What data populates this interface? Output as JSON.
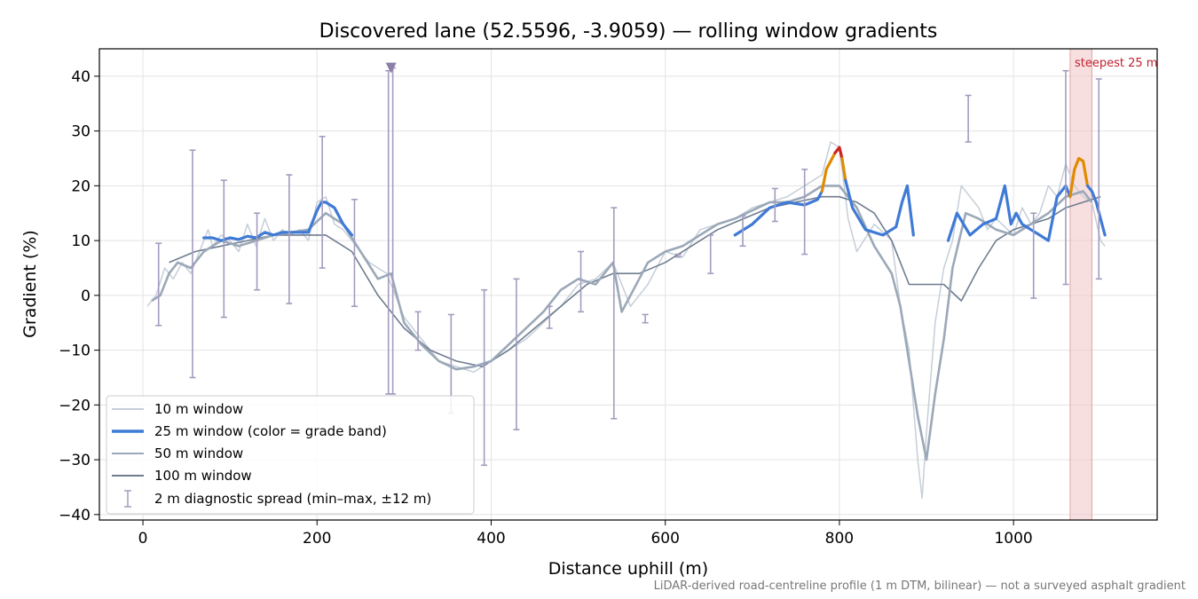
{
  "chart_data": {
    "type": "line",
    "title": "Discovered lane (52.5596, -3.9059) — rolling window gradients",
    "xlabel": "Distance uphill (m)",
    "ylabel": "Gradient (%)",
    "xlim": [
      -50,
      1165
    ],
    "ylim": [
      -41,
      45
    ],
    "xticks": [
      0,
      200,
      400,
      600,
      800,
      1000
    ],
    "yticks": [
      -40,
      -30,
      -20,
      -10,
      0,
      10,
      20,
      30,
      40
    ],
    "x_tick_labels": [
      "0",
      "200",
      "400",
      "600",
      "800",
      "1000"
    ],
    "y_tick_labels": [
      "−40",
      "−30",
      "−20",
      "−10",
      "0",
      "10",
      "20",
      "30",
      "40"
    ],
    "grid": true,
    "legend_position": "lower-left",
    "footnote": "LiDAR-derived road-centreline profile (1 m DTM, bilinear) — not a surveyed asphalt gradient",
    "steepest_span": {
      "label": "steepest 25 m",
      "x_start": 1065,
      "x_end": 1090,
      "color": "#f2c4c4"
    },
    "marker": {
      "x": 285,
      "y": 41.5,
      "shape": "triangle-down",
      "color": "#8a7fa8"
    },
    "series": [
      {
        "name": "10 m window",
        "color": "#c5ced8",
        "x": [
          5,
          15,
          25,
          35,
          45,
          55,
          65,
          75,
          80,
          90,
          100,
          110,
          120,
          130,
          140,
          150,
          160,
          170,
          180,
          190,
          200,
          210,
          220,
          230,
          240,
          260,
          280,
          300,
          320,
          340,
          360,
          380,
          400,
          420,
          440,
          460,
          480,
          500,
          520,
          540,
          560,
          580,
          600,
          620,
          640,
          660,
          680,
          700,
          720,
          740,
          760,
          780,
          790,
          800,
          810,
          820,
          840,
          860,
          870,
          880,
          890,
          895,
          900,
          905,
          910,
          920,
          930,
          940,
          950,
          960,
          970,
          980,
          1000,
          1010,
          1020,
          1030,
          1040,
          1050,
          1060,
          1070,
          1080,
          1090,
          1100,
          1105
        ],
        "y": [
          -2,
          0,
          5,
          3,
          6,
          4,
          8,
          12,
          9,
          11,
          10,
          8,
          13,
          9,
          14,
          10,
          12,
          11,
          12,
          10,
          17,
          18,
          13,
          12,
          10,
          6,
          4,
          -4,
          -8,
          -12,
          -13,
          -14,
          -12,
          -10,
          -8,
          -5,
          -2,
          2,
          3,
          6,
          -2,
          2,
          8,
          7,
          12,
          13,
          14,
          16,
          17,
          18,
          20,
          22,
          28,
          27,
          14,
          8,
          13,
          10,
          -2,
          -10,
          -30,
          -37,
          -25,
          -15,
          -5,
          5,
          10,
          20,
          18,
          16,
          12,
          14,
          11,
          16,
          13,
          15,
          20,
          18,
          24,
          20,
          18,
          17,
          10,
          9
        ]
      },
      {
        "name": "25 m window (color = grade band)",
        "color": "#3f7ad6",
        "segments": [
          {
            "band": "blue",
            "color": "#3f7ad6",
            "x": [
              70,
              80,
              90,
              100,
              110,
              120,
              130,
              140,
              150,
              160,
              170,
              180,
              190,
              200,
              205,
              210,
              220,
              230,
              240
            ],
            "y": [
              10.5,
              10.5,
              10,
              10.5,
              10.2,
              10.8,
              10.5,
              11.5,
              11,
              11.5,
              11.5,
              11.5,
              11.5,
              15.5,
              17,
              17,
              16,
              13,
              11
            ]
          },
          {
            "band": "blue",
            "color": "#3f7ad6",
            "x": [
              680,
              700,
              720,
              740,
              760,
              775,
              780
            ],
            "y": [
              11,
              13,
              16,
              17,
              16.5,
              17.5,
              19
            ]
          },
          {
            "band": "orange",
            "color": "#e08a00",
            "x": [
              780,
              785,
              790,
              795
            ],
            "y": [
              19,
              23,
              24.5,
              26
            ]
          },
          {
            "band": "red",
            "color": "#d02020",
            "x": [
              795,
              800,
              803
            ],
            "y": [
              26,
              27,
              25
            ]
          },
          {
            "band": "orange",
            "color": "#e08a00",
            "x": [
              803,
              807
            ],
            "y": [
              25,
              21
            ]
          },
          {
            "band": "blue",
            "color": "#3f7ad6",
            "x": [
              807,
              815,
              830,
              850,
              865,
              872,
              878,
              885
            ],
            "y": [
              21,
              16,
              12,
              11,
              12.5,
              17,
              20,
              11
            ]
          },
          {
            "band": "blue",
            "color": "#3f7ad6",
            "x": [
              925,
              935,
              950,
              965,
              980,
              990,
              997,
              1003,
              1010,
              1020,
              1030,
              1040,
              1050,
              1060,
              1065
            ],
            "y": [
              10,
              15,
              11,
              13,
              14,
              20,
              13,
              15,
              13,
              12,
              11,
              10,
              18,
              20,
              18
            ]
          },
          {
            "band": "orange",
            "color": "#e08a00",
            "x": [
              1065,
              1070,
              1075,
              1080,
              1085
            ],
            "y": [
              18,
              23,
              25,
              24.5,
              20
            ]
          },
          {
            "band": "blue",
            "color": "#3f7ad6",
            "x": [
              1085,
              1090,
              1095,
              1100,
              1105
            ],
            "y": [
              20,
              19,
              17,
              14,
              11
            ]
          }
        ]
      },
      {
        "name": "50 m window",
        "color": "#9ba8b8",
        "x": [
          10,
          20,
          30,
          40,
          55,
          70,
          90,
          110,
          130,
          150,
          170,
          190,
          210,
          230,
          250,
          270,
          285,
          300,
          320,
          340,
          360,
          380,
          400,
          420,
          440,
          460,
          480,
          500,
          520,
          540,
          550,
          560,
          580,
          600,
          620,
          640,
          660,
          680,
          700,
          720,
          740,
          760,
          780,
          800,
          820,
          840,
          860,
          870,
          880,
          890,
          900,
          910,
          920,
          930,
          945,
          960,
          980,
          1000,
          1020,
          1040,
          1060,
          1080,
          1090
        ],
        "y": [
          -1,
          0,
          4,
          6,
          5,
          8,
          10,
          9,
          10,
          11,
          11.5,
          12,
          15,
          13,
          8,
          3,
          4,
          -5,
          -9,
          -12,
          -13.5,
          -13,
          -12,
          -9,
          -6,
          -3,
          1,
          3,
          2,
          6,
          -3,
          0,
          6,
          8,
          9,
          11,
          13,
          14,
          15.5,
          17,
          17,
          18,
          20,
          20,
          16,
          9,
          4,
          -2,
          -12,
          -22,
          -30,
          -18,
          -8,
          5,
          15,
          14,
          12,
          11,
          13,
          15,
          18,
          19,
          17
        ]
      },
      {
        "name": "100 m window",
        "color": "#6f7d90",
        "x": [
          30,
          60,
          90,
          120,
          150,
          180,
          210,
          240,
          270,
          300,
          330,
          360,
          390,
          420,
          450,
          480,
          510,
          540,
          570,
          600,
          630,
          660,
          690,
          720,
          750,
          780,
          800,
          820,
          840,
          860,
          880,
          900,
          920,
          940,
          960,
          980,
          1000,
          1020,
          1040,
          1060,
          1080,
          1100
        ],
        "y": [
          6,
          8,
          9,
          10,
          11,
          11,
          11,
          8,
          0,
          -6,
          -10,
          -12,
          -13,
          -10,
          -6,
          -2,
          2,
          4,
          4,
          6,
          9,
          12,
          14,
          16,
          17,
          18,
          18,
          17,
          15,
          10,
          2,
          2,
          2,
          -1,
          5,
          10,
          12,
          13,
          14,
          16,
          17,
          18
        ]
      }
    ],
    "diagnostic_spread": {
      "name": "2 m diagnostic spread (min–max, ±12 m)",
      "color": "#a39cbf",
      "bars": [
        {
          "x": 18,
          "low": -5.5,
          "high": 9.5
        },
        {
          "x": 57,
          "low": -15,
          "high": 26.5
        },
        {
          "x": 93,
          "low": -4,
          "high": 21
        },
        {
          "x": 131,
          "low": 1,
          "high": 15
        },
        {
          "x": 168,
          "low": -1.5,
          "high": 22
        },
        {
          "x": 206,
          "low": 5,
          "high": 29
        },
        {
          "x": 243,
          "low": -2,
          "high": 17.5
        },
        {
          "x": 282,
          "low": -18,
          "high": 41
        },
        {
          "x": 287,
          "low": -18,
          "high": 41.5
        },
        {
          "x": 316,
          "low": -10,
          "high": -3
        },
        {
          "x": 354,
          "low": -21.5,
          "high": -3.5
        },
        {
          "x": 392,
          "low": -31,
          "high": 1
        },
        {
          "x": 429,
          "low": -24.5,
          "high": 3
        },
        {
          "x": 467,
          "low": -6,
          "high": -2
        },
        {
          "x": 503,
          "low": -3,
          "high": 8
        },
        {
          "x": 541,
          "low": -22.5,
          "high": 16
        },
        {
          "x": 577,
          "low": -5,
          "high": -3.5
        },
        {
          "x": 615,
          "low": 7,
          "high": 7.5
        },
        {
          "x": 652,
          "low": 4,
          "high": 11
        },
        {
          "x": 689,
          "low": 9,
          "high": 14.5
        },
        {
          "x": 726,
          "low": 13.5,
          "high": 19.5
        },
        {
          "x": 760,
          "low": 7.5,
          "high": 23
        },
        {
          "x": 948,
          "low": 28,
          "high": 36.5
        },
        {
          "x": 1023,
          "low": -0.5,
          "high": 15
        },
        {
          "x": 1060,
          "low": 2,
          "high": 41
        },
        {
          "x": 1098,
          "low": 3,
          "high": 39.5
        }
      ]
    }
  }
}
